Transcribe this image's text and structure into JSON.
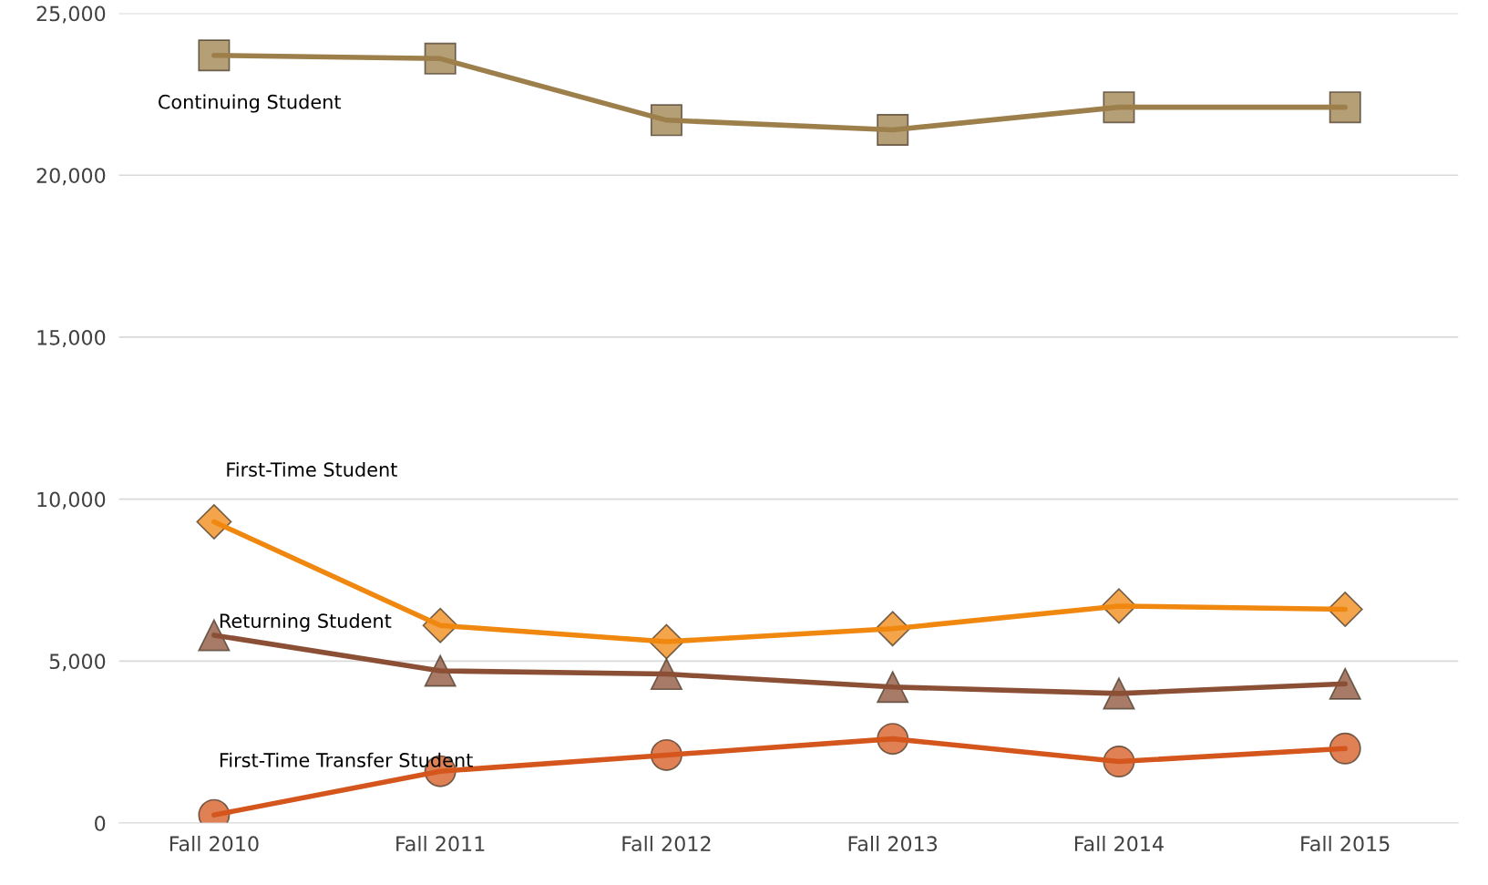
{
  "chart_data": {
    "type": "line",
    "categories": [
      "Fall 2010",
      "Fall 2011",
      "Fall 2012",
      "Fall 2013",
      "Fall 2014",
      "Fall 2015"
    ],
    "series": [
      {
        "name": "Continuing Student",
        "color": "#9c7f4a",
        "marker": "square",
        "values": [
          23700,
          23600,
          21700,
          21400,
          22100,
          22100
        ]
      },
      {
        "name": "First-Time Student",
        "color": "#f0870f",
        "marker": "diamond",
        "values": [
          9300,
          6100,
          5600,
          6000,
          6700,
          6600
        ]
      },
      {
        "name": "Returning Student",
        "color": "#8b4f36",
        "marker": "triangle",
        "values": [
          5800,
          4700,
          4600,
          4200,
          4000,
          4300
        ]
      },
      {
        "name": "First-Time Transfer Student",
        "color": "#d4561c",
        "marker": "circle",
        "values": [
          250,
          1600,
          2100,
          2600,
          1900,
          2300
        ]
      }
    ],
    "ylim": [
      0,
      25000
    ],
    "yticks": [
      {
        "value": 0,
        "label": "0"
      },
      {
        "value": 5000,
        "label": "5,000"
      },
      {
        "value": 10000,
        "label": "10,000"
      },
      {
        "value": 15000,
        "label": "15,000"
      },
      {
        "value": 20000,
        "label": "20,000"
      },
      {
        "value": 25000,
        "label": "25,000"
      }
    ],
    "grid": "y",
    "legend": false,
    "line_style": "solid"
  }
}
